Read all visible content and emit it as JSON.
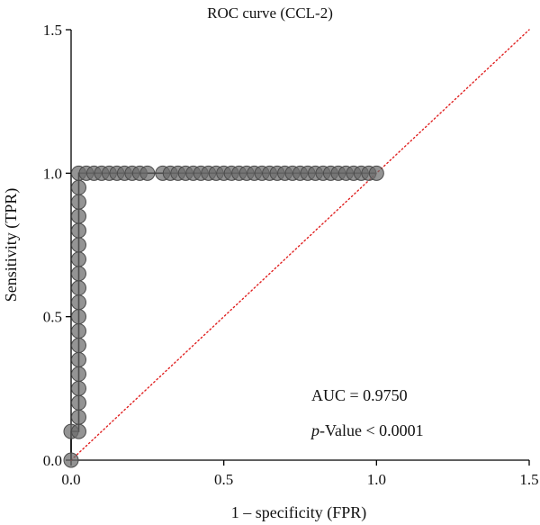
{
  "chart_data": {
    "type": "scatter",
    "title": "ROC curve (CCL-2)",
    "xlabel": "1 – specificity (FPR)",
    "ylabel": "Sensitivity (TPR)",
    "xlim": [
      0,
      1.5
    ],
    "ylim": [
      0,
      1.5
    ],
    "xticks": [
      "0.0",
      "0.5",
      "1.0",
      "1.5"
    ],
    "yticks": [
      "0.0",
      "0.5",
      "1.0",
      "1.5"
    ],
    "grid": false,
    "legend": "none",
    "annotations": {
      "auc": "AUC = 0.9750",
      "p_italic": "p",
      "p_rest": "-Value < 0.0001"
    },
    "reference_line": {
      "x": [
        0,
        1.5
      ],
      "y": [
        0,
        1.5
      ],
      "style": "dotted",
      "color": "#e02020"
    },
    "series": [
      {
        "marker_color": "#6b6b6b",
        "line_color": "#000000",
        "points": [
          [
            0.0,
            0.0
          ],
          [
            0.0,
            0.1
          ],
          [
            0.025,
            0.1
          ],
          [
            0.025,
            0.15
          ],
          [
            0.025,
            0.2
          ],
          [
            0.025,
            0.25
          ],
          [
            0.025,
            0.3
          ],
          [
            0.025,
            0.35
          ],
          [
            0.025,
            0.4
          ],
          [
            0.025,
            0.45
          ],
          [
            0.025,
            0.5
          ],
          [
            0.025,
            0.55
          ],
          [
            0.025,
            0.6
          ],
          [
            0.025,
            0.65
          ],
          [
            0.025,
            0.7
          ],
          [
            0.025,
            0.75
          ],
          [
            0.025,
            0.8
          ],
          [
            0.025,
            0.85
          ],
          [
            0.025,
            0.9
          ],
          [
            0.025,
            0.95
          ],
          [
            0.025,
            1.0
          ],
          [
            0.05,
            1.0
          ],
          [
            0.075,
            1.0
          ],
          [
            0.1,
            1.0
          ],
          [
            0.125,
            1.0
          ],
          [
            0.15,
            1.0
          ],
          [
            0.175,
            1.0
          ],
          [
            0.2,
            1.0
          ],
          [
            0.225,
            1.0
          ],
          [
            0.25,
            1.0
          ],
          [
            0.3,
            1.0
          ],
          [
            0.325,
            1.0
          ],
          [
            0.35,
            1.0
          ],
          [
            0.375,
            1.0
          ],
          [
            0.4,
            1.0
          ],
          [
            0.425,
            1.0
          ],
          [
            0.45,
            1.0
          ],
          [
            0.475,
            1.0
          ],
          [
            0.5,
            1.0
          ],
          [
            0.525,
            1.0
          ],
          [
            0.55,
            1.0
          ],
          [
            0.575,
            1.0
          ],
          [
            0.6,
            1.0
          ],
          [
            0.625,
            1.0
          ],
          [
            0.65,
            1.0
          ],
          [
            0.675,
            1.0
          ],
          [
            0.7,
            1.0
          ],
          [
            0.725,
            1.0
          ],
          [
            0.75,
            1.0
          ],
          [
            0.775,
            1.0
          ],
          [
            0.8,
            1.0
          ],
          [
            0.825,
            1.0
          ],
          [
            0.85,
            1.0
          ],
          [
            0.875,
            1.0
          ],
          [
            0.9,
            1.0
          ],
          [
            0.925,
            1.0
          ],
          [
            0.95,
            1.0
          ],
          [
            0.975,
            1.0
          ],
          [
            1.0,
            1.0
          ]
        ]
      }
    ]
  }
}
